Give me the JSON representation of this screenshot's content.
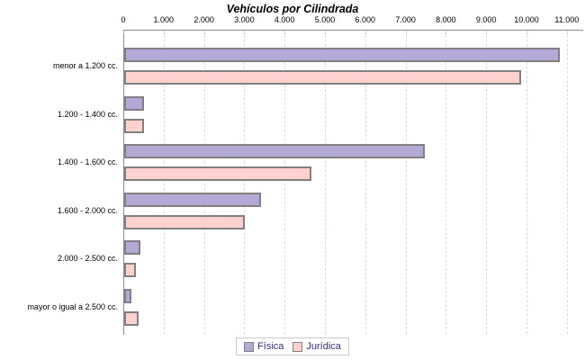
{
  "title": "Vehículos por Cilindrada",
  "colors": {
    "fisica_fill": "#b4a9d6",
    "juridica_fill": "#fdd1ce",
    "bar_border": "#808080",
    "axis": "#8c8c8c",
    "gridline": "#dcdcdc",
    "legend_text": "#372c7e",
    "legend_border": "#c9c9c9",
    "title_text": "#000000"
  },
  "chart_data": {
    "type": "bar",
    "orientation": "horizontal",
    "title": "Vehículos por Cilindrada",
    "categories": [
      "menor a 1.200 cc.",
      "1.200 - 1.400 cc.",
      "1.400 - 1.600 cc.",
      "1.600 - 2.000 cc.",
      "2.000 - 2.500 cc.",
      "mayor o igual a 2.500 cc."
    ],
    "series": [
      {
        "name": "Física",
        "color": "#b4a9d6",
        "values": [
          10800,
          500,
          7450,
          3400,
          400,
          180
        ]
      },
      {
        "name": "Jurídica",
        "color": "#fdd1ce",
        "values": [
          9850,
          500,
          4650,
          3000,
          280,
          350
        ]
      }
    ],
    "xlabel": "",
    "ylabel": "",
    "xlim": [
      0,
      11000
    ],
    "x_tick_interval": 1000,
    "x_tick_labels": [
      "0",
      "1.000",
      "2.000",
      "3.000",
      "4.000",
      "5.000",
      "6.000",
      "7.000",
      "8.000",
      "9.000",
      "10.000",
      "11.000"
    ],
    "grid": true,
    "axis_position": "top",
    "legend_position": "bottom"
  },
  "legend": {
    "items": [
      {
        "label": "Física"
      },
      {
        "label": "Jurídica"
      }
    ]
  }
}
